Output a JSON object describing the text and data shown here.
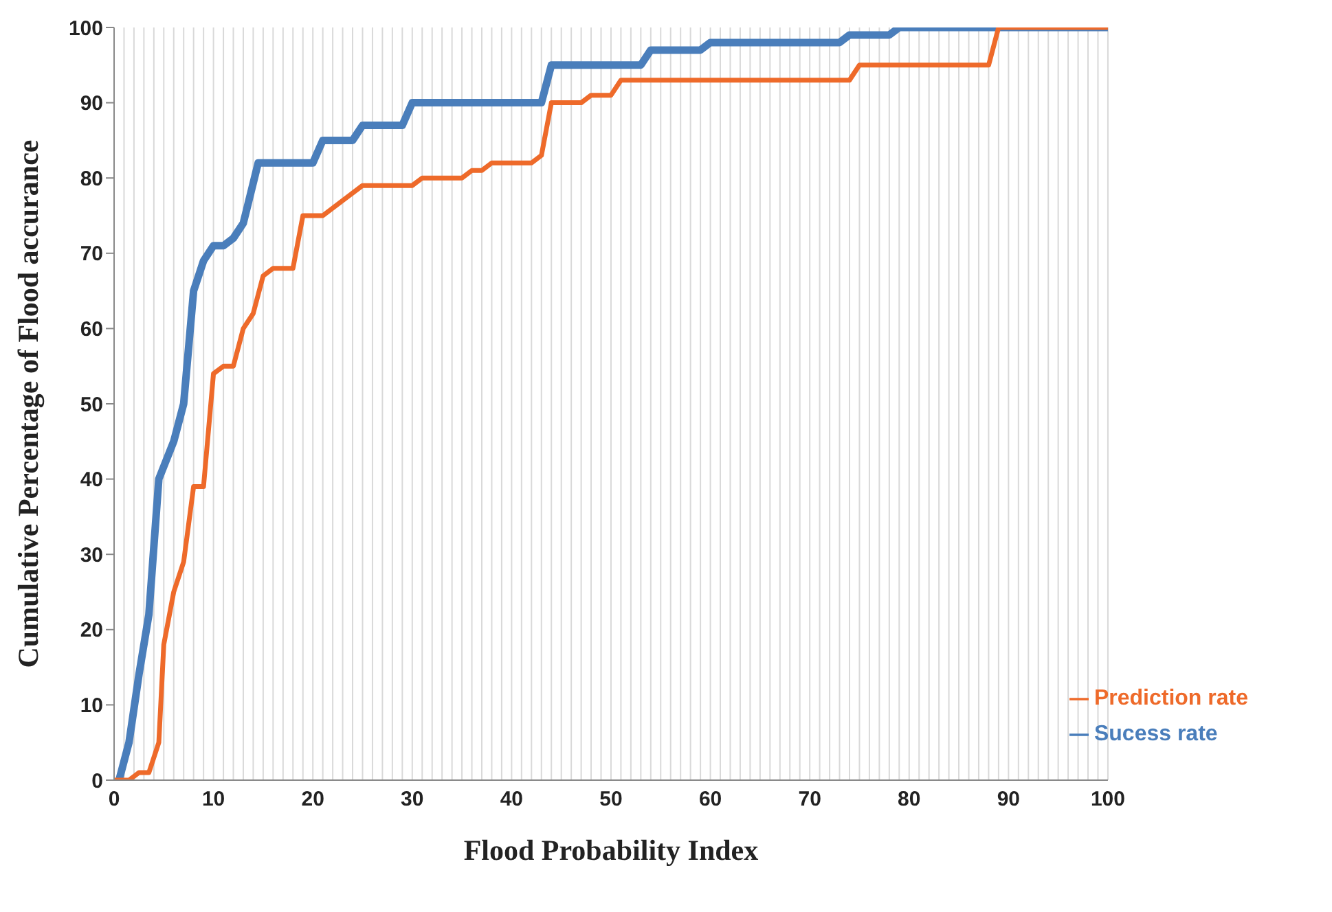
{
  "chart_data": {
    "type": "line",
    "xlabel": "Flood Probability Index",
    "ylabel": "Cumulative Percentage of Flood accurance",
    "series": [
      {
        "name": "Sucess rate",
        "color": "#4a7ebb",
        "x": [
          0.5,
          1.5,
          2.5,
          3.5,
          4.5,
          6,
          7,
          8,
          9,
          10,
          11,
          12,
          13,
          14.5,
          20,
          21,
          24,
          25,
          29,
          30,
          43,
          44,
          53,
          54,
          59,
          60,
          73,
          74,
          78,
          79,
          100
        ],
        "values": [
          0,
          5,
          14,
          22,
          40,
          45,
          50,
          65,
          69,
          71,
          71,
          72,
          74,
          82,
          82,
          85,
          85,
          87,
          87,
          90,
          90,
          95,
          95,
          97,
          97,
          98,
          98,
          99,
          99,
          100,
          100
        ]
      },
      {
        "name": "Prediction rate",
        "color": "#ee6a2a",
        "x": [
          0,
          1.5,
          2.5,
          3.5,
          4.5,
          5,
          6,
          7,
          8,
          9,
          10,
          11,
          12,
          13,
          14,
          15,
          16,
          18,
          19,
          21,
          23,
          25,
          30,
          31,
          35,
          36,
          37,
          38,
          42,
          43,
          44,
          47,
          48,
          50,
          51,
          74,
          75,
          88,
          89,
          100
        ],
        "values": [
          0,
          0,
          1,
          1,
          5,
          18,
          25,
          29,
          39,
          39,
          54,
          55,
          55,
          60,
          62,
          67,
          68,
          68,
          75,
          75,
          77,
          79,
          79,
          80,
          80,
          81,
          81,
          82,
          82,
          83,
          90,
          90,
          91,
          91,
          93,
          93,
          95,
          95,
          100,
          100
        ]
      }
    ],
    "xlim": [
      0,
      100
    ],
    "ylim": [
      0,
      100
    ],
    "xticks": [
      0,
      {
        "value": 1,
        "label": null
      },
      {
        "value": 2,
        "label": null
      },
      {
        "value": 3,
        "label": null
      },
      {
        "value": 4,
        "label": null
      },
      {
        "value": 5,
        "label": null
      },
      {
        "value": 6,
        "label": null
      },
      {
        "value": 7,
        "label": null
      },
      {
        "value": 8,
        "label": null
      },
      {
        "value": 9,
        "label": null
      },
      10,
      {
        "value": 11,
        "label": null
      },
      {
        "value": 12,
        "label": null
      },
      {
        "value": 13,
        "label": null
      },
      {
        "value": 14,
        "label": null
      },
      {
        "value": 15,
        "label": null
      },
      {
        "value": 16,
        "label": null
      },
      {
        "value": 17,
        "label": null
      },
      {
        "value": 18,
        "label": null
      },
      {
        "value": 19,
        "label": null
      },
      20,
      {
        "value": 21,
        "label": null
      },
      {
        "value": 22,
        "label": null
      },
      {
        "value": 23,
        "label": null
      },
      {
        "value": 24,
        "label": null
      },
      {
        "value": 25,
        "label": null
      },
      {
        "value": 26,
        "label": null
      },
      {
        "value": 27,
        "label": null
      },
      {
        "value": 28,
        "label": null
      },
      {
        "value": 29,
        "label": null
      },
      30,
      {
        "value": 31,
        "label": null
      },
      {
        "value": 32,
        "label": null
      },
      {
        "value": 33,
        "label": null
      },
      {
        "value": 34,
        "label": null
      },
      {
        "value": 35,
        "label": null
      },
      {
        "value": 36,
        "label": null
      },
      {
        "value": 37,
        "label": null
      },
      {
        "value": 38,
        "label": null
      },
      {
        "value": 39,
        "label": null
      },
      40,
      {
        "value": 41,
        "label": null
      },
      {
        "value": 42,
        "label": null
      },
      {
        "value": 43,
        "label": null
      },
      {
        "value": 44,
        "label": null
      },
      {
        "value": 45,
        "label": null
      },
      {
        "value": 46,
        "label": null
      },
      {
        "value": 47,
        "label": null
      },
      {
        "value": 48,
        "label": null
      },
      {
        "value": 49,
        "label": null
      },
      50,
      {
        "value": 51,
        "label": null
      },
      {
        "value": 52,
        "label": null
      },
      {
        "value": 53,
        "label": null
      },
      {
        "value": 54,
        "label": null
      },
      {
        "value": 55,
        "label": null
      },
      {
        "value": 56,
        "label": null
      },
      {
        "value": 57,
        "label": null
      },
      {
        "value": 58,
        "label": null
      },
      {
        "value": 59,
        "label": null
      },
      60,
      {
        "value": 61,
        "label": null
      },
      {
        "value": 62,
        "label": null
      },
      {
        "value": 63,
        "label": null
      },
      {
        "value": 64,
        "label": null
      },
      {
        "value": 65,
        "label": null
      },
      {
        "value": 66,
        "label": null
      },
      {
        "value": 67,
        "label": null
      },
      {
        "value": 68,
        "label": null
      },
      {
        "value": 69,
        "label": null
      },
      70,
      {
        "value": 71,
        "label": null
      },
      {
        "value": 72,
        "label": null
      },
      {
        "value": 73,
        "label": null
      },
      {
        "value": 74,
        "label": null
      },
      {
        "value": 75,
        "label": null
      },
      {
        "value": 76,
        "label": null
      },
      {
        "value": 77,
        "label": null
      },
      {
        "value": 78,
        "label": null
      },
      {
        "value": 79,
        "label": null
      },
      80,
      {
        "value": 81,
        "label": null
      },
      {
        "value": 82,
        "label": null
      },
      {
        "value": 83,
        "label": null
      },
      {
        "value": 84,
        "label": null
      },
      {
        "value": 85,
        "label": null
      },
      {
        "value": 86,
        "label": null
      },
      {
        "value": 87,
        "label": null
      },
      {
        "value": 88,
        "label": null
      },
      {
        "value": 89,
        "label": null
      },
      90,
      {
        "value": 91,
        "label": null
      },
      {
        "value": 92,
        "label": null
      },
      {
        "value": 93,
        "label": null
      },
      {
        "value": 94,
        "label": null
      },
      {
        "value": 95,
        "label": null
      },
      {
        "value": 96,
        "label": null
      },
      {
        "value": 97,
        "label": null
      },
      {
        "value": 98,
        "label": null
      },
      {
        "value": 99,
        "label": null
      },
      100
    ],
    "yticks": [
      0,
      10,
      20,
      30,
      40,
      50,
      60,
      70,
      80,
      90,
      100
    ],
    "grid": "x",
    "legend": "bottom right",
    "marker": "none",
    "line_style": "solid"
  }
}
